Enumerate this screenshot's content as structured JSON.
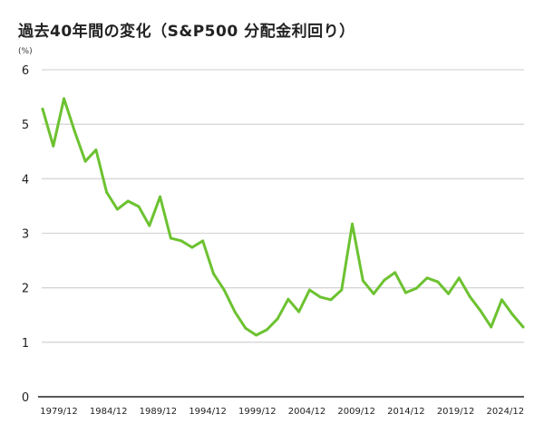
{
  "chart_data": {
    "type": "line",
    "title": "過去40年間の変化（S&P500 分配金利回り）",
    "ylabel": "(%)",
    "xlabel": "",
    "ylim": [
      0,
      6
    ],
    "yticks": [
      0,
      1,
      2,
      3,
      4,
      5,
      6
    ],
    "xtick_labels": [
      "1979/12",
      "1984/12",
      "1989/12",
      "1994/12",
      "1999/12",
      "2004/12",
      "2009/12",
      "2014/12",
      "2019/12",
      "2024/12"
    ],
    "grid": true,
    "line_color": "#6cc230",
    "series": [
      {
        "name": "S&P500 分配金利回り",
        "values": [
          5.28,
          4.6,
          5.47,
          4.87,
          4.32,
          4.53,
          3.75,
          3.44,
          3.59,
          3.49,
          3.14,
          3.67,
          2.91,
          2.86,
          2.74,
          2.86,
          2.26,
          1.96,
          1.56,
          1.26,
          1.13,
          1.23,
          1.43,
          1.79,
          1.56,
          1.96,
          1.83,
          1.78,
          1.96,
          3.17,
          2.13,
          1.89,
          2.14,
          2.28,
          1.91,
          1.99,
          2.18,
          2.11,
          1.89,
          2.18,
          1.84,
          1.58,
          1.28,
          1.78,
          1.51,
          1.28
        ]
      }
    ]
  }
}
